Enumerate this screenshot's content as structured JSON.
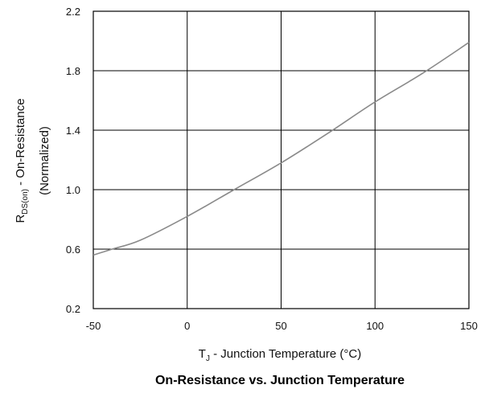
{
  "chart_data": {
    "type": "line",
    "title": "On-Resistance vs. Junction Temperature",
    "xlabel": {
      "main": "T",
      "sub": "J",
      "rest": " -  Junction Temperature (°C)"
    },
    "ylabel": {
      "main": "R",
      "sub": "DS(on)",
      "rest": " - On-Resistance",
      "line2": "(Normalized)"
    },
    "xlim": [
      -50,
      150
    ],
    "ylim": [
      0.2,
      2.2
    ],
    "xticks": [
      -50,
      0,
      50,
      100,
      150
    ],
    "xtick_labels": [
      "-50",
      "0",
      "50",
      "100",
      "150"
    ],
    "yticks": [
      0.2,
      0.6,
      1.0,
      1.4,
      1.8,
      2.2
    ],
    "ytick_labels": [
      "0.2",
      "0.6",
      "1.0",
      "1.4",
      "1.8",
      "2.2"
    ],
    "grid": true,
    "series": [
      {
        "x": [
          -50,
          -40,
          -25,
          0,
          25,
          50,
          75,
          100,
          125,
          150
        ],
        "y": [
          0.56,
          0.6,
          0.66,
          0.82,
          1.0,
          1.18,
          1.38,
          1.59,
          1.78,
          1.99
        ]
      }
    ]
  }
}
